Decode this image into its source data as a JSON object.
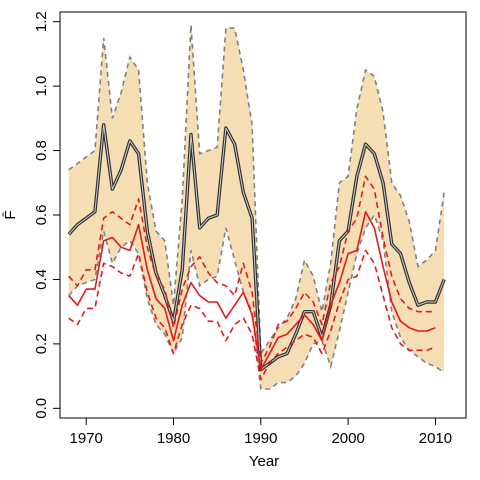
{
  "chart_data": {
    "type": "line",
    "title": "",
    "xlabel": "Year",
    "ylabel": "F̄",
    "xlim": [
      1967,
      2013.5
    ],
    "ylim": [
      -0.03,
      1.23
    ],
    "xticks": [
      1970,
      1980,
      1990,
      2000,
      2010
    ],
    "yticks": [
      0.0,
      0.2,
      0.4,
      0.6,
      0.8,
      1.0,
      1.2
    ],
    "ytick_labels": [
      "0.0",
      "0.2",
      "0.4",
      "0.6",
      "0.8",
      "1.0",
      "1.2"
    ],
    "grid": false,
    "legend": "none",
    "colors": {
      "band_fill": "#f5deb3",
      "band_edge": "#808080",
      "median": "#333333",
      "model": "#e31a1c",
      "axis": "#000000"
    },
    "years": [
      1968,
      1969,
      1970,
      1971,
      1972,
      1973,
      1974,
      1975,
      1976,
      1977,
      1978,
      1979,
      1980,
      1981,
      1982,
      1983,
      1984,
      1985,
      1986,
      1987,
      1988,
      1989,
      1990,
      1991,
      1992,
      1993,
      1994,
      1995,
      1996,
      1997,
      1998,
      1999,
      2000,
      2001,
      2002,
      2003,
      2004,
      2005,
      2006,
      2007,
      2008,
      2009,
      2010,
      2011,
      2012
    ],
    "band_upper": [
      0.74,
      0.76,
      0.78,
      0.8,
      1.15,
      0.9,
      0.98,
      1.09,
      1.05,
      0.7,
      0.55,
      0.52,
      0.32,
      0.65,
      1.19,
      0.79,
      0.8,
      0.81,
      1.18,
      1.18,
      1.05,
      0.88,
      0.17,
      0.21,
      0.25,
      0.28,
      0.34,
      0.46,
      0.41,
      0.3,
      0.45,
      0.7,
      0.72,
      0.93,
      1.05,
      1.03,
      0.92,
      0.7,
      0.66,
      0.58,
      0.44,
      0.46,
      0.49,
      0.67
    ],
    "band_lower": [
      0.35,
      0.38,
      0.39,
      0.4,
      0.55,
      0.45,
      0.5,
      0.52,
      0.48,
      0.34,
      0.26,
      0.23,
      0.17,
      0.22,
      0.49,
      0.38,
      0.4,
      0.41,
      0.56,
      0.46,
      0.36,
      0.3,
      0.06,
      0.06,
      0.08,
      0.08,
      0.1,
      0.14,
      0.2,
      0.21,
      0.13,
      0.24,
      0.36,
      0.48,
      0.56,
      0.6,
      0.52,
      0.3,
      0.22,
      0.18,
      0.16,
      0.14,
      0.13,
      0.11
    ],
    "series": [
      {
        "values": [
          0.54,
          0.57,
          0.59,
          0.61,
          0.88,
          0.68,
          0.74,
          0.83,
          0.79,
          0.55,
          0.42,
          0.35,
          0.27,
          0.43,
          0.85,
          0.56,
          0.59,
          0.6,
          0.87,
          0.82,
          0.67,
          0.59,
          0.12,
          0.14,
          0.16,
          0.17,
          0.23,
          0.3,
          0.3,
          0.22,
          0.32,
          0.52,
          0.55,
          0.72,
          0.82,
          0.79,
          0.7,
          0.51,
          0.48,
          0.39,
          0.32,
          0.33,
          0.33,
          0.4
        ]
      },
      {
        "values": [
          0.35,
          0.32,
          0.37,
          0.37,
          0.52,
          0.53,
          0.5,
          0.49,
          0.57,
          0.43,
          0.34,
          0.31,
          0.21,
          0.32,
          0.39,
          0.35,
          0.33,
          0.33,
          0.28,
          0.32,
          0.36,
          0.29,
          0.12,
          0.17,
          0.22,
          0.23,
          0.26,
          0.29,
          0.26,
          0.21,
          0.32,
          0.39,
          0.48,
          0.49,
          0.61,
          0.56,
          0.44,
          0.33,
          0.27,
          0.25,
          0.24,
          0.24,
          0.25
        ],
        "style": "solid"
      },
      {
        "values": [
          0.41,
          0.38,
          0.43,
          0.43,
          0.59,
          0.61,
          0.59,
          0.57,
          0.65,
          0.5,
          0.41,
          0.37,
          0.25,
          0.37,
          0.44,
          0.47,
          0.42,
          0.39,
          0.38,
          0.35,
          0.45,
          0.36,
          0.14,
          0.19,
          0.26,
          0.27,
          0.31,
          0.36,
          0.33,
          0.26,
          0.39,
          0.44,
          0.55,
          0.59,
          0.72,
          0.68,
          0.53,
          0.41,
          0.34,
          0.31,
          0.3,
          0.3,
          0.3
        ],
        "style": "dashed"
      },
      {
        "values": [
          0.28,
          0.26,
          0.31,
          0.31,
          0.45,
          0.44,
          0.42,
          0.41,
          0.48,
          0.36,
          0.28,
          0.25,
          0.17,
          0.26,
          0.32,
          0.31,
          0.27,
          0.27,
          0.21,
          0.26,
          0.28,
          0.23,
          0.09,
          0.14,
          0.17,
          0.19,
          0.21,
          0.23,
          0.22,
          0.17,
          0.24,
          0.33,
          0.4,
          0.41,
          0.49,
          0.45,
          0.35,
          0.25,
          0.2,
          0.18,
          0.18,
          0.18,
          0.19
        ],
        "style": "dashed"
      }
    ]
  }
}
